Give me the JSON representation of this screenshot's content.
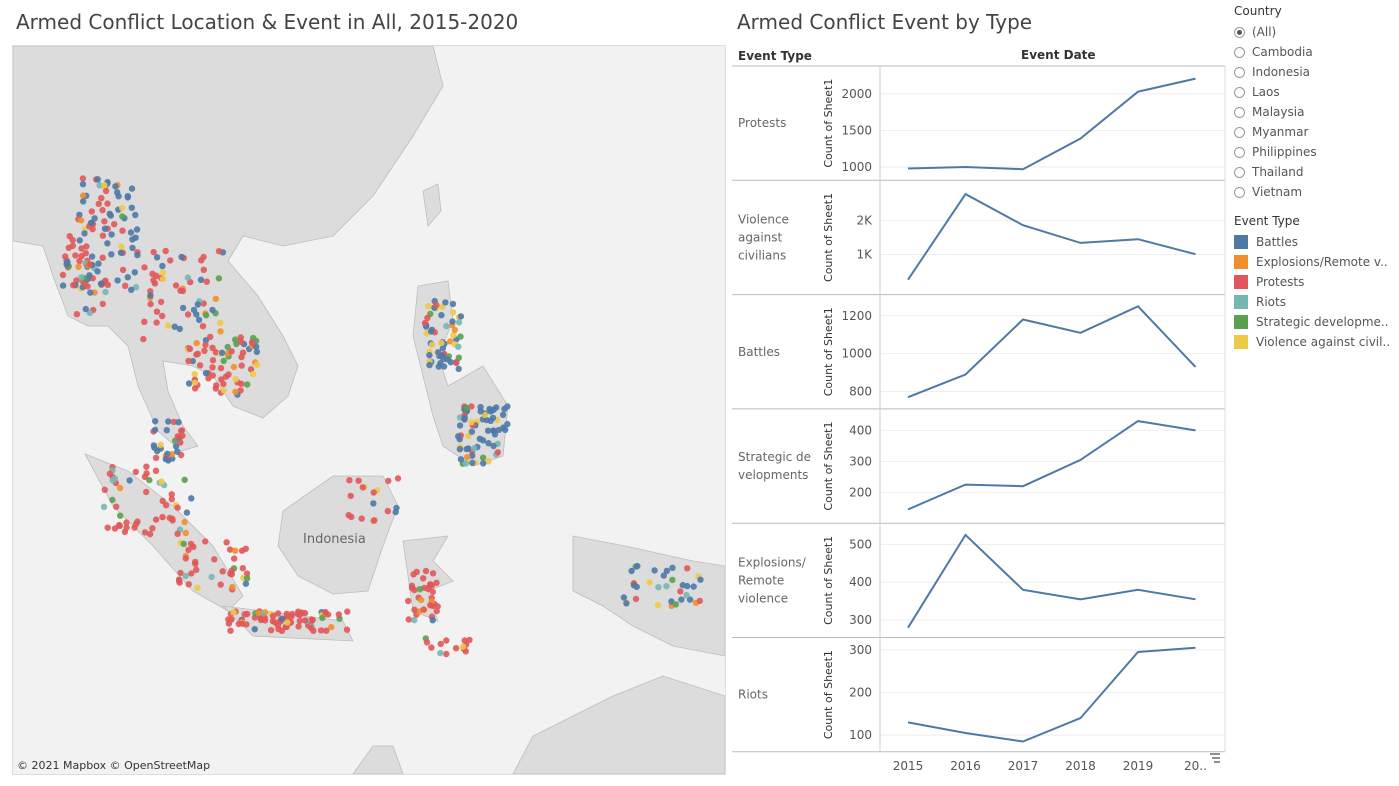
{
  "map": {
    "title": "Armed Conflict Location & Event in All, 2015-2020",
    "region_label": "Indonesia",
    "credit": "© 2021 Mapbox  © OpenStreetMap"
  },
  "chart": {
    "title": "Armed Conflict Event by Type",
    "col_event_type": "Event Type",
    "col_event_date": "Event Date",
    "y_axis_label": "Count of Sheet1"
  },
  "filters": {
    "country_header": "Country",
    "countries": [
      "(All)",
      "Cambodia",
      "Indonesia",
      "Laos",
      "Malaysia",
      "Myanmar",
      "Philippines",
      "Thailand",
      "Vietnam"
    ],
    "selected": "(All)"
  },
  "legend": {
    "header": "Event Type",
    "items": [
      {
        "label": "Battles",
        "color": "#4e79a7"
      },
      {
        "label": "Explosions/Remote v..",
        "color": "#f28e2b"
      },
      {
        "label": "Protests",
        "color": "#e15759"
      },
      {
        "label": "Riots",
        "color": "#76b7b2"
      },
      {
        "label": "Strategic developme..",
        "color": "#59a14f"
      },
      {
        "label": "Violence against civil..",
        "color": "#edc948"
      }
    ]
  },
  "chart_data": {
    "type": "line",
    "x": [
      "2015",
      "2016",
      "2017",
      "2018",
      "2019",
      "20.."
    ],
    "series_color": "#4e79a7",
    "panels": [
      {
        "name": "Protests",
        "values": [
          980,
          1000,
          970,
          1390,
          2030,
          2210
        ],
        "ylim": [
          900,
          2300
        ],
        "ticks": [
          1000,
          1500,
          2000
        ],
        "tick_labels": [
          "1000",
          "1500",
          "2000"
        ]
      },
      {
        "name": "Violence against civilians",
        "values": [
          260,
          2770,
          1860,
          1340,
          1450,
          1010
        ],
        "ylim": [
          0,
          3000
        ],
        "ticks": [
          1000,
          2000
        ],
        "tick_labels": [
          "1K",
          "2K"
        ]
      },
      {
        "name": "Battles",
        "values": [
          770,
          890,
          1180,
          1110,
          1250,
          930
        ],
        "ylim": [
          740,
          1280
        ],
        "ticks": [
          800,
          1000,
          1200
        ],
        "tick_labels": [
          "800",
          "1000",
          "1200"
        ]
      },
      {
        "name": "Strategic developments",
        "values": [
          145,
          225,
          220,
          305,
          430,
          400
        ],
        "ylim": [
          120,
          450
        ],
        "ticks": [
          200,
          300,
          400
        ],
        "tick_labels": [
          "200",
          "300",
          "400"
        ]
      },
      {
        "name": "Explosions/ Remote violence",
        "values": [
          280,
          525,
          380,
          355,
          380,
          355
        ],
        "ylim": [
          270,
          540
        ],
        "ticks": [
          300,
          400,
          500
        ],
        "tick_labels": [
          "300",
          "400",
          "500"
        ]
      },
      {
        "name": "Riots",
        "values": [
          130,
          105,
          85,
          140,
          295,
          305
        ],
        "ylim": [
          75,
          315
        ],
        "ticks": [
          100,
          200,
          300
        ],
        "tick_labels": [
          "100",
          "200",
          "300"
        ]
      }
    ],
    "panel_labels": [
      [
        "Protests"
      ],
      [
        "Violence",
        "against",
        "civilians"
      ],
      [
        "Battles"
      ],
      [
        "Strategic de",
        "velopments"
      ],
      [
        "Explosions/",
        "Remote",
        "violence"
      ],
      [
        "Riots"
      ]
    ]
  }
}
